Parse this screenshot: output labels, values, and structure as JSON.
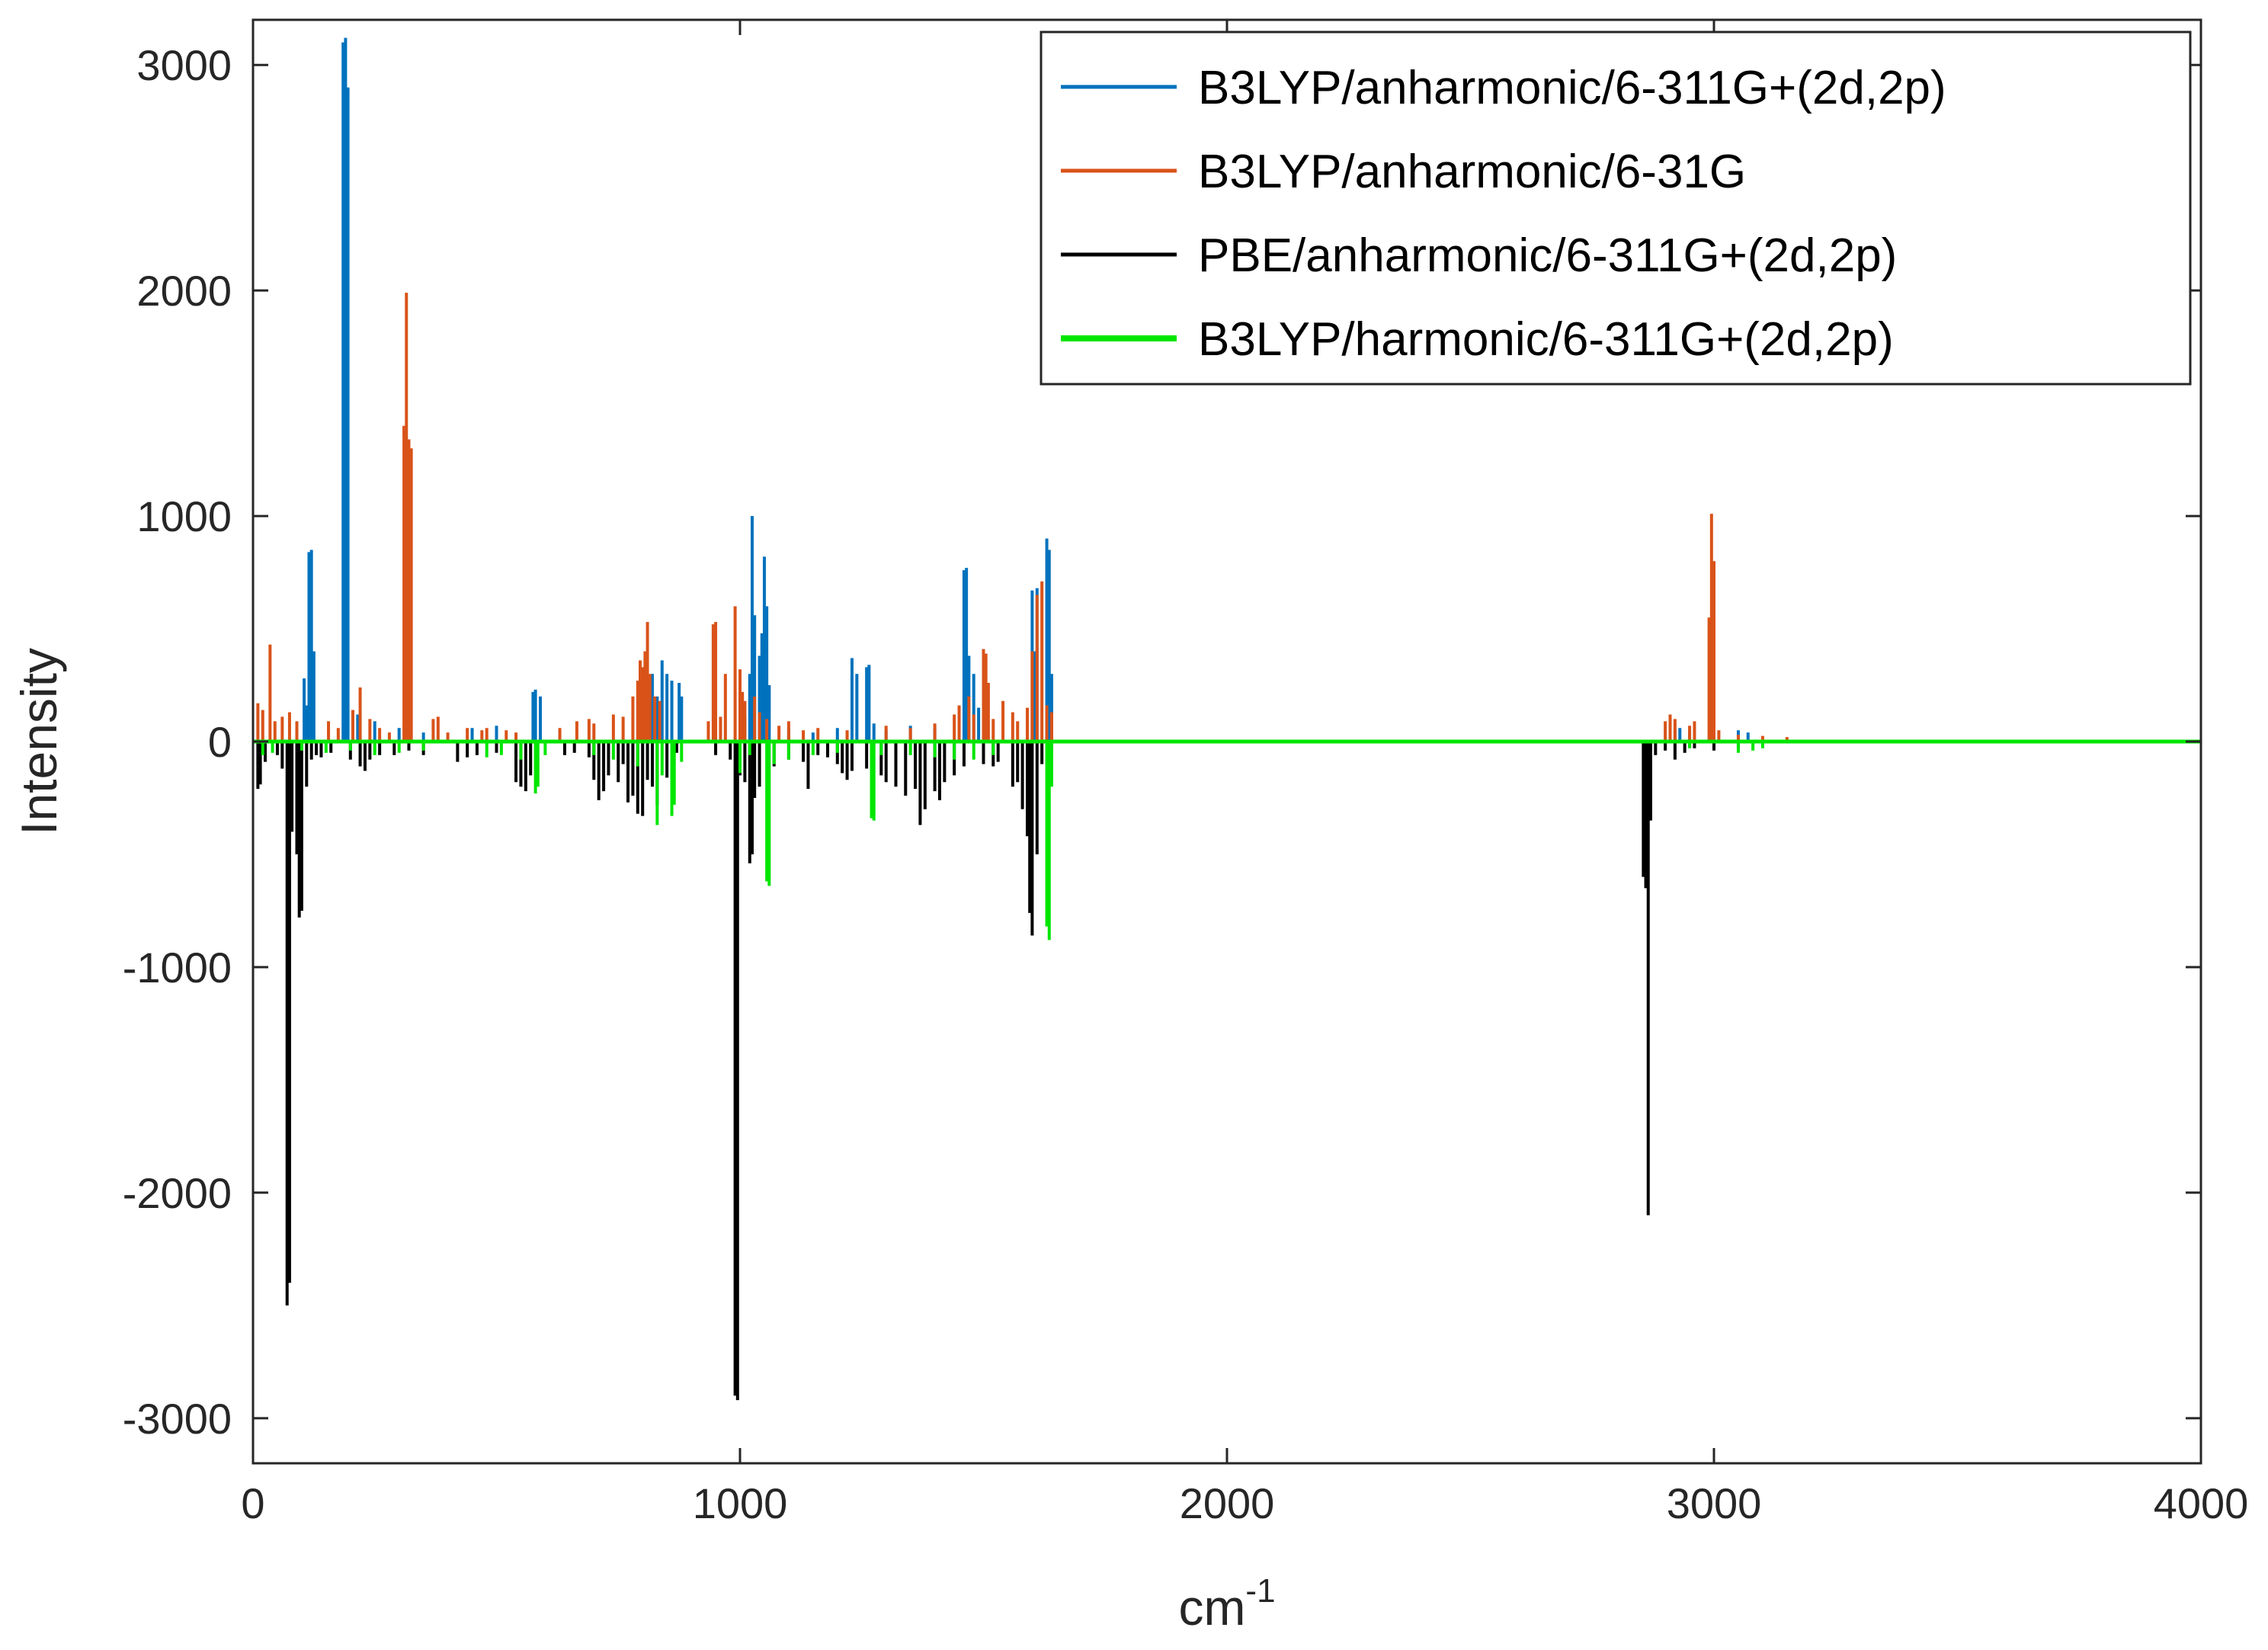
{
  "chart_data": {
    "type": "line",
    "title": "",
    "xlabel_base": "cm",
    "xlabel_exponent": "-1",
    "ylabel": "Intensity",
    "xlim": [
      0,
      4000
    ],
    "ylim": [
      -3200,
      3200
    ],
    "grid": false,
    "legend_position": "top-right",
    "x_ticks": [
      0,
      1000,
      2000,
      3000,
      4000
    ],
    "x_tick_labels": [
      "0",
      "1000",
      "2000",
      "3000",
      "4000"
    ],
    "y_ticks": [
      3000,
      2000,
      1000,
      0,
      -1000,
      -2000,
      -3000
    ],
    "y_tick_labels": [
      "3000",
      "2000",
      "1000",
      "0",
      "-1000",
      "-2000",
      "-3000"
    ],
    "series": [
      {
        "name": "B3LYP/anharmonic/6-311G+(2d,2p)",
        "color": "#0072BD",
        "direction": "up",
        "peaks": [
          [
            105,
            280
          ],
          [
            110,
            160
          ],
          [
            115,
            840
          ],
          [
            120,
            850
          ],
          [
            125,
            400
          ],
          [
            185,
            3100
          ],
          [
            190,
            3120
          ],
          [
            195,
            2900
          ],
          [
            215,
            120
          ],
          [
            250,
            90
          ],
          [
            300,
            60
          ],
          [
            350,
            40
          ],
          [
            450,
            60
          ],
          [
            500,
            70
          ],
          [
            575,
            220
          ],
          [
            580,
            230
          ],
          [
            590,
            200
          ],
          [
            800,
            270
          ],
          [
            810,
            250
          ],
          [
            820,
            300
          ],
          [
            830,
            200
          ],
          [
            840,
            360
          ],
          [
            850,
            300
          ],
          [
            860,
            270
          ],
          [
            875,
            260
          ],
          [
            880,
            200
          ],
          [
            1000,
            90
          ],
          [
            1010,
            120
          ],
          [
            1020,
            300
          ],
          [
            1025,
            1000
          ],
          [
            1030,
            560
          ],
          [
            1040,
            380
          ],
          [
            1045,
            480
          ],
          [
            1050,
            820
          ],
          [
            1055,
            600
          ],
          [
            1060,
            250
          ],
          [
            1100,
            60
          ],
          [
            1150,
            40
          ],
          [
            1200,
            60
          ],
          [
            1230,
            370
          ],
          [
            1240,
            300
          ],
          [
            1260,
            330
          ],
          [
            1265,
            340
          ],
          [
            1275,
            80
          ],
          [
            1300,
            50
          ],
          [
            1350,
            70
          ],
          [
            1400,
            60
          ],
          [
            1460,
            760
          ],
          [
            1465,
            770
          ],
          [
            1470,
            380
          ],
          [
            1480,
            300
          ],
          [
            1490,
            150
          ],
          [
            1600,
            670
          ],
          [
            1605,
            400
          ],
          [
            1610,
            680
          ],
          [
            1630,
            900
          ],
          [
            1635,
            850
          ],
          [
            1640,
            300
          ],
          [
            2920,
            50
          ],
          [
            2930,
            60
          ],
          [
            2950,
            40
          ],
          [
            3000,
            40
          ],
          [
            3050,
            50
          ],
          [
            3070,
            40
          ]
        ]
      },
      {
        "name": "B3LYP/anharmonic/6-31G",
        "color": "#D95319",
        "direction": "up",
        "peaks": [
          [
            10,
            170
          ],
          [
            20,
            140
          ],
          [
            35,
            430
          ],
          [
            45,
            90
          ],
          [
            60,
            110
          ],
          [
            75,
            130
          ],
          [
            90,
            90
          ],
          [
            155,
            90
          ],
          [
            175,
            60
          ],
          [
            205,
            140
          ],
          [
            220,
            240
          ],
          [
            240,
            100
          ],
          [
            260,
            60
          ],
          [
            280,
            40
          ],
          [
            310,
            1400
          ],
          [
            315,
            1990
          ],
          [
            320,
            1340
          ],
          [
            325,
            1300
          ],
          [
            370,
            100
          ],
          [
            380,
            110
          ],
          [
            400,
            40
          ],
          [
            440,
            60
          ],
          [
            470,
            50
          ],
          [
            480,
            60
          ],
          [
            520,
            50
          ],
          [
            540,
            40
          ],
          [
            630,
            60
          ],
          [
            665,
            90
          ],
          [
            690,
            100
          ],
          [
            700,
            80
          ],
          [
            740,
            120
          ],
          [
            760,
            110
          ],
          [
            780,
            200
          ],
          [
            790,
            270
          ],
          [
            795,
            360
          ],
          [
            800,
            330
          ],
          [
            805,
            400
          ],
          [
            810,
            530
          ],
          [
            815,
            300
          ],
          [
            825,
            200
          ],
          [
            835,
            180
          ],
          [
            935,
            90
          ],
          [
            945,
            520
          ],
          [
            950,
            530
          ],
          [
            960,
            110
          ],
          [
            970,
            300
          ],
          [
            990,
            600
          ],
          [
            1000,
            320
          ],
          [
            1005,
            220
          ],
          [
            1010,
            180
          ],
          [
            1030,
            200
          ],
          [
            1040,
            130
          ],
          [
            1055,
            100
          ],
          [
            1080,
            70
          ],
          [
            1100,
            90
          ],
          [
            1130,
            50
          ],
          [
            1160,
            60
          ],
          [
            1220,
            50
          ],
          [
            1300,
            70
          ],
          [
            1350,
            60
          ],
          [
            1400,
            80
          ],
          [
            1440,
            120
          ],
          [
            1450,
            160
          ],
          [
            1470,
            200
          ],
          [
            1480,
            120
          ],
          [
            1500,
            410
          ],
          [
            1505,
            390
          ],
          [
            1510,
            260
          ],
          [
            1520,
            100
          ],
          [
            1540,
            180
          ],
          [
            1560,
            130
          ],
          [
            1570,
            90
          ],
          [
            1590,
            150
          ],
          [
            1600,
            400
          ],
          [
            1610,
            650
          ],
          [
            1620,
            710
          ],
          [
            1630,
            160
          ],
          [
            1640,
            130
          ],
          [
            2900,
            90
          ],
          [
            2910,
            120
          ],
          [
            2920,
            100
          ],
          [
            2950,
            70
          ],
          [
            2960,
            90
          ],
          [
            2990,
            550
          ],
          [
            2995,
            1010
          ],
          [
            3000,
            800
          ],
          [
            3010,
            50
          ],
          [
            3050,
            30
          ],
          [
            3100,
            25
          ],
          [
            3150,
            20
          ]
        ]
      },
      {
        "name": "PBE/anharmonic/6-311G+(2d,2p)",
        "color": "#000000",
        "direction": "down",
        "peaks": [
          [
            10,
            -210
          ],
          [
            15,
            -190
          ],
          [
            25,
            -90
          ],
          [
            50,
            -60
          ],
          [
            60,
            -120
          ],
          [
            70,
            -2500
          ],
          [
            75,
            -2400
          ],
          [
            80,
            -400
          ],
          [
            90,
            -500
          ],
          [
            95,
            -780
          ],
          [
            100,
            -750
          ],
          [
            110,
            -200
          ],
          [
            120,
            -80
          ],
          [
            130,
            -60
          ],
          [
            140,
            -70
          ],
          [
            160,
            -50
          ],
          [
            200,
            -80
          ],
          [
            220,
            -110
          ],
          [
            230,
            -130
          ],
          [
            240,
            -80
          ],
          [
            260,
            -60
          ],
          [
            290,
            -60
          ],
          [
            320,
            -40
          ],
          [
            350,
            -60
          ],
          [
            420,
            -90
          ],
          [
            440,
            -70
          ],
          [
            460,
            -60
          ],
          [
            500,
            -50
          ],
          [
            540,
            -180
          ],
          [
            550,
            -200
          ],
          [
            560,
            -220
          ],
          [
            570,
            -150
          ],
          [
            640,
            -60
          ],
          [
            660,
            -50
          ],
          [
            690,
            -70
          ],
          [
            700,
            -170
          ],
          [
            710,
            -260
          ],
          [
            720,
            -220
          ],
          [
            730,
            -150
          ],
          [
            750,
            -180
          ],
          [
            760,
            -100
          ],
          [
            770,
            -270
          ],
          [
            780,
            -240
          ],
          [
            790,
            -320
          ],
          [
            800,
            -330
          ],
          [
            810,
            -170
          ],
          [
            820,
            -200
          ],
          [
            830,
            -280
          ],
          [
            850,
            -160
          ],
          [
            870,
            -50
          ],
          [
            950,
            -60
          ],
          [
            980,
            -80
          ],
          [
            990,
            -2900
          ],
          [
            995,
            -2920
          ],
          [
            1000,
            -150
          ],
          [
            1010,
            -180
          ],
          [
            1020,
            -540
          ],
          [
            1025,
            -500
          ],
          [
            1030,
            -250
          ],
          [
            1040,
            -200
          ],
          [
            1070,
            -110
          ],
          [
            1100,
            -80
          ],
          [
            1130,
            -90
          ],
          [
            1140,
            -210
          ],
          [
            1160,
            -60
          ],
          [
            1180,
            -70
          ],
          [
            1200,
            -100
          ],
          [
            1210,
            -140
          ],
          [
            1220,
            -170
          ],
          [
            1230,
            -130
          ],
          [
            1260,
            -120
          ],
          [
            1290,
            -150
          ],
          [
            1300,
            -180
          ],
          [
            1320,
            -200
          ],
          [
            1340,
            -240
          ],
          [
            1360,
            -210
          ],
          [
            1370,
            -370
          ],
          [
            1380,
            -300
          ],
          [
            1400,
            -220
          ],
          [
            1410,
            -260
          ],
          [
            1420,
            -180
          ],
          [
            1440,
            -150
          ],
          [
            1460,
            -110
          ],
          [
            1500,
            -100
          ],
          [
            1520,
            -110
          ],
          [
            1530,
            -90
          ],
          [
            1560,
            -200
          ],
          [
            1570,
            -180
          ],
          [
            1580,
            -300
          ],
          [
            1590,
            -420
          ],
          [
            1595,
            -760
          ],
          [
            1600,
            -860
          ],
          [
            1610,
            -500
          ],
          [
            1620,
            -100
          ],
          [
            1640,
            -60
          ],
          [
            2855,
            -600
          ],
          [
            2860,
            -650
          ],
          [
            2865,
            -2100
          ],
          [
            2870,
            -350
          ],
          [
            2880,
            -60
          ],
          [
            2900,
            -40
          ],
          [
            2920,
            -80
          ],
          [
            2940,
            -50
          ],
          [
            2960,
            -30
          ],
          [
            3000,
            -40
          ],
          [
            3050,
            -30
          ]
        ]
      },
      {
        "name": "B3LYP/harmonic/6-311G+(2d,2p)",
        "color": "#00E600",
        "direction": "down",
        "peaks": [
          [
            20,
            -60
          ],
          [
            40,
            -50
          ],
          [
            100,
            -40
          ],
          [
            150,
            -50
          ],
          [
            200,
            -40
          ],
          [
            250,
            -60
          ],
          [
            300,
            -50
          ],
          [
            350,
            -40
          ],
          [
            480,
            -70
          ],
          [
            510,
            -60
          ],
          [
            550,
            -80
          ],
          [
            580,
            -230
          ],
          [
            585,
            -200
          ],
          [
            600,
            -60
          ],
          [
            700,
            -60
          ],
          [
            740,
            -80
          ],
          [
            790,
            -110
          ],
          [
            830,
            -370
          ],
          [
            840,
            -150
          ],
          [
            860,
            -330
          ],
          [
            865,
            -280
          ],
          [
            880,
            -90
          ],
          [
            1000,
            -140
          ],
          [
            1020,
            -60
          ],
          [
            1055,
            -620
          ],
          [
            1060,
            -640
          ],
          [
            1070,
            -100
          ],
          [
            1100,
            -80
          ],
          [
            1150,
            -60
          ],
          [
            1200,
            -50
          ],
          [
            1270,
            -340
          ],
          [
            1275,
            -350
          ],
          [
            1290,
            -60
          ],
          [
            1350,
            -60
          ],
          [
            1400,
            -70
          ],
          [
            1440,
            -80
          ],
          [
            1480,
            -80
          ],
          [
            1520,
            -60
          ],
          [
            1630,
            -820
          ],
          [
            1635,
            -880
          ],
          [
            1640,
            -200
          ],
          [
            2950,
            -30
          ],
          [
            3050,
            -50
          ],
          [
            3080,
            -40
          ],
          [
            3100,
            -30
          ]
        ]
      }
    ]
  }
}
